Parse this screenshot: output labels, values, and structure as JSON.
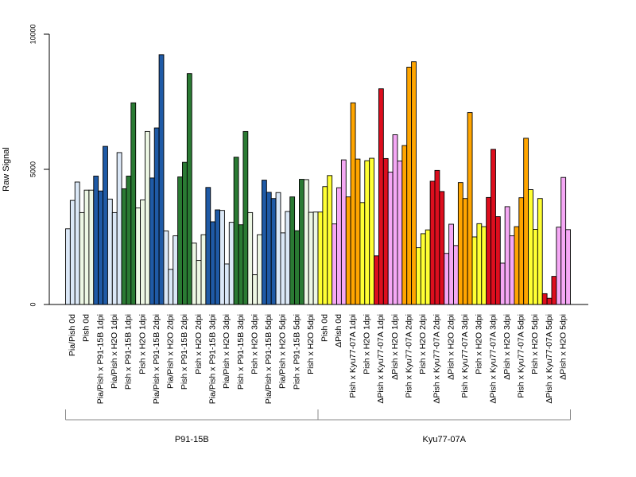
{
  "chart_data": {
    "type": "bar",
    "ylabel": "Raw Signal",
    "ylim": [
      0,
      10000
    ],
    "yticks": [
      "0",
      "5000",
      "10000"
    ],
    "grid": false,
    "legend": "none",
    "categories": [
      "Pia/Pish 0d",
      "Pish 0d",
      "Pia/Pish x P91-15B 1dpi",
      "Pia/Pish x H2O 1dpi",
      "Pish x P91-15B 1dpi",
      "Pish x H2O 1dpi",
      "Pia/Pish x P91-15B 2dpi",
      "Pia/Pish x H2O 2dpi",
      "Pish x P91-15B 2dpi",
      "Pish x H2O 2dpi",
      "Pia/Pish x P91-15B 3dpi",
      "Pia/Pish x H2O 3dpi",
      "Pish x P91-15B 3dpi",
      "Pish x H2O 3dpi",
      "Pia/Pish x P91-15B 5dpi",
      "Pia/Pish x H2O 5dpi",
      "Pish x P91-15B 5dpi",
      "Pish x H2O 5dpi",
      "Pish 0d",
      "ΔPish 0d",
      "Pish x Kyu77-07A 1dpi",
      "Pish x H2O 1dpi",
      "ΔPish x Kyu77-07A 1dpi",
      "ΔPish x H2O 1dpi",
      "Pish x Kyu77-07A 2dpi",
      "Pish x H2O 2dpi",
      "ΔPish x Kyu77-07A 2dpi",
      "ΔPish x H2O 2dpi",
      "Pish x Kyu77-07A 3dpi",
      "Pish x H2O 3dpi",
      "ΔPish x Kyu77-07A 3dpi",
      "ΔPish x H2O 3dpi",
      "Pish x Kyu77-07A 5dpi",
      "Pish x H2O 5dpi",
      "ΔPish x Kyu77-07A 5dpi",
      "ΔPish x H2O 5dpi"
    ],
    "colors": [
      "#dbe8f7",
      "#edf7e4",
      "#1f5aa6",
      "#dbe8f7",
      "#2a7a33",
      "#edf7e4",
      "#1f5aa6",
      "#dbe8f7",
      "#2a7a33",
      "#edf7e4",
      "#1f5aa6",
      "#dbe8f7",
      "#2a7a33",
      "#edf7e4",
      "#1f5aa6",
      "#dbe8f7",
      "#2a7a33",
      "#edf7e4",
      "#ffff33",
      "#f5a8f5",
      "#ffa500",
      "#ffff33",
      "#dd0e1e",
      "#f5a8f5",
      "#ffa500",
      "#ffff33",
      "#dd0e1e",
      "#f5a8f5",
      "#ffa500",
      "#ffff33",
      "#dd0e1e",
      "#f5a8f5",
      "#ffa500",
      "#ffff33",
      "#dd0e1e",
      "#f5a8f5"
    ],
    "values": [
      [
        2800,
        3850,
        4530
      ],
      [
        3400,
        4230,
        4230
      ],
      [
        4750,
        4200,
        5850
      ],
      [
        3900,
        3400,
        5620
      ],
      [
        4280,
        4750,
        7460
      ],
      [
        3570,
        3870,
        6400
      ],
      [
        4680,
        6530,
        9240
      ],
      [
        2720,
        1300,
        2540
      ],
      [
        4720,
        5260,
        8540
      ],
      [
        2270,
        1630,
        2580
      ],
      [
        4330,
        3060,
        3500
      ],
      [
        3480,
        1500,
        3040
      ],
      [
        5450,
        2950,
        6400
      ],
      [
        3400,
        1100,
        2580
      ],
      [
        4600,
        4150,
        3920
      ],
      [
        4140,
        2650,
        3440
      ],
      [
        3980,
        2730,
        4630
      ],
      [
        4620,
        3410,
        3420
      ],
      [
        3420,
        4360,
        4770
      ],
      [
        2980,
        4320,
        5350
      ],
      [
        3980,
        7460,
        5380
      ],
      [
        3770,
        5320,
        5410
      ],
      [
        1800,
        7980,
        5400
      ],
      [
        4900,
        6280,
        5310
      ],
      [
        5880,
        8780,
        8980
      ],
      [
        2100,
        2620,
        2760
      ],
      [
        4560,
        4960,
        4180
      ],
      [
        1890,
        2970,
        2180
      ],
      [
        4510,
        3920,
        7100
      ],
      [
        2500,
        2990,
        2880
      ],
      [
        3960,
        5740,
        3250
      ],
      [
        1530,
        3620,
        2540
      ],
      [
        2880,
        3950,
        6150
      ],
      [
        4250,
        2780,
        3920
      ],
      [
        400,
        230,
        1040
      ],
      [
        2860,
        4700,
        2770
      ]
    ],
    "groups": [
      {
        "label": "P91-15B",
        "from": 0,
        "to": 17
      },
      {
        "label": "Kyu77-07A",
        "from": 18,
        "to": 35
      }
    ]
  }
}
